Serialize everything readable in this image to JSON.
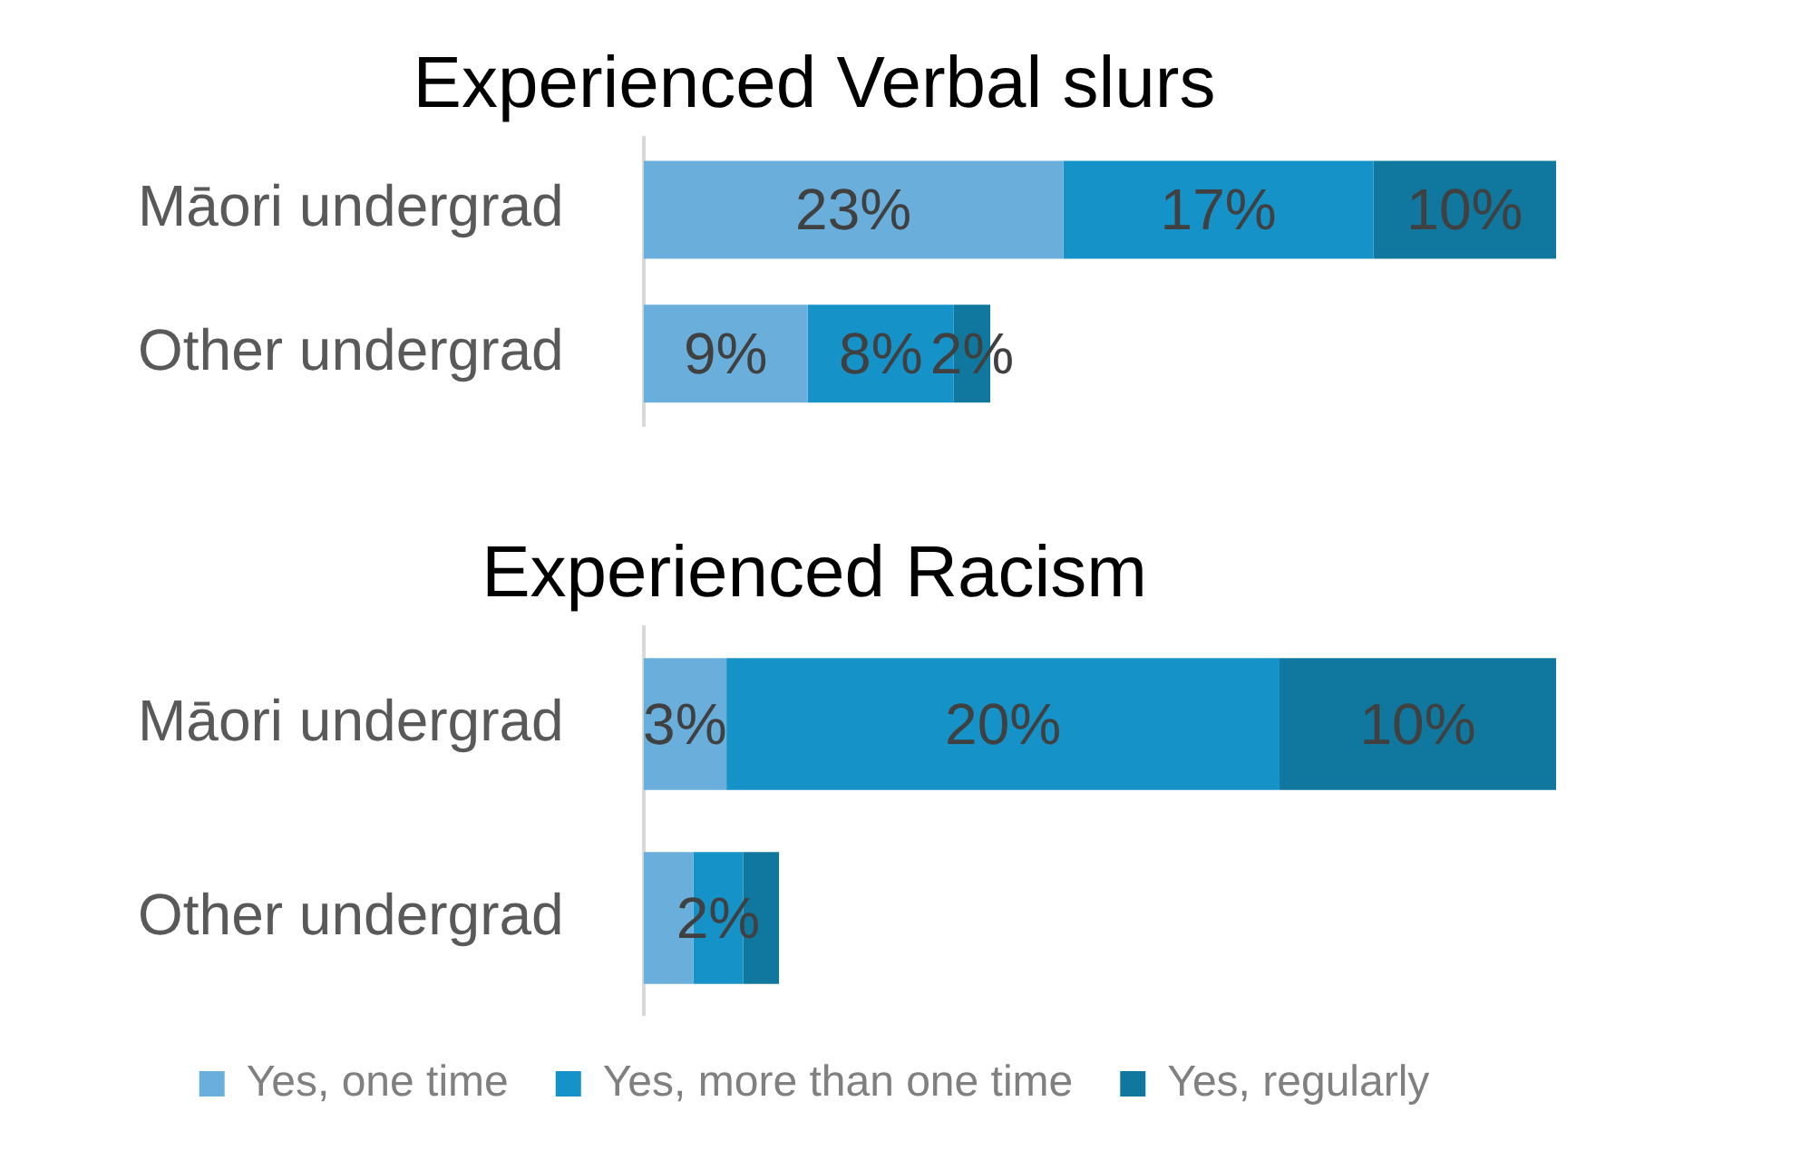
{
  "chart_data": [
    {
      "type": "bar",
      "orientation": "horizontal",
      "stacked": true,
      "title": "Experienced Verbal slurs",
      "categories": [
        "Māori undergrad",
        "Other undergrad"
      ],
      "legend": false,
      "series": [
        {
          "color": "#6aafdc",
          "values": [
            23,
            9
          ],
          "value_labels": [
            "23%",
            "9%"
          ]
        },
        {
          "color": "#1592c8",
          "values": [
            17,
            8
          ],
          "value_labels": [
            "17%",
            "8%"
          ]
        },
        {
          "color": "#10789f",
          "values": [
            10,
            2
          ],
          "value_labels": [
            "10%",
            "2%"
          ]
        }
      ]
    },
    {
      "type": "bar",
      "orientation": "horizontal",
      "stacked": true,
      "title": "Experienced Racism",
      "categories": [
        "Māori undergrad",
        "Other undergrad"
      ],
      "legend": "bottom",
      "series": [
        {
          "name": "Yes, one time",
          "color": "#6aafdc",
          "values": [
            3,
            1.8
          ],
          "value_labels": [
            "3%",
            null
          ]
        },
        {
          "name": "Yes, more than one time",
          "color": "#1592c8",
          "values": [
            20,
            1.8
          ],
          "value_labels": [
            "20%",
            "2%"
          ]
        },
        {
          "name": "Yes, regularly",
          "color": "#10789f",
          "values": [
            10,
            1.3
          ],
          "value_labels": [
            "10%",
            null
          ]
        }
      ]
    }
  ]
}
